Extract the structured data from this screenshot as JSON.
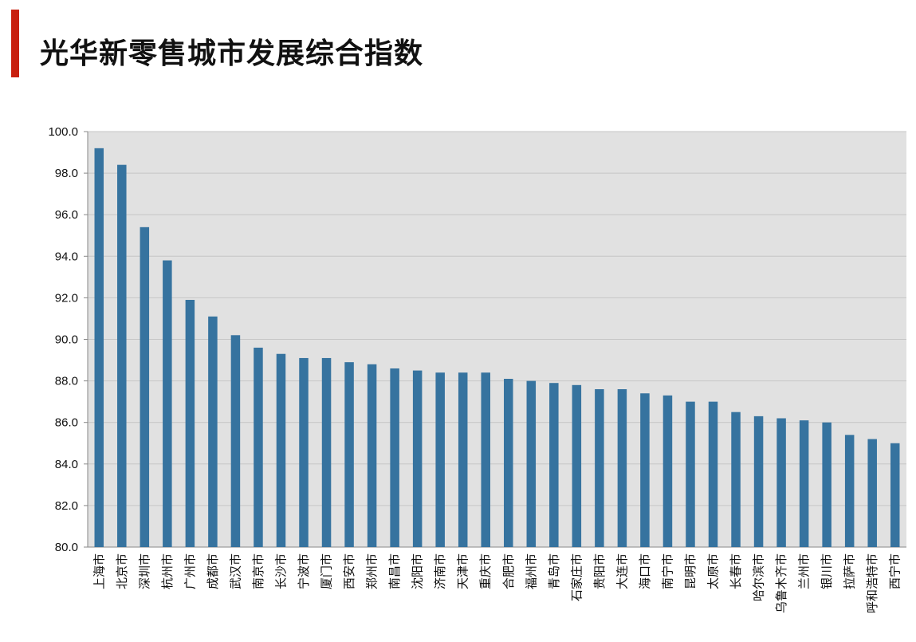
{
  "chart_data": {
    "type": "bar",
    "title": "光华新零售城市发展综合指数",
    "xlabel": "",
    "ylabel": "",
    "ylim": [
      80,
      100
    ],
    "yticks": [
      "80.0",
      "82.0",
      "84.0",
      "86.0",
      "88.0",
      "90.0",
      "92.0",
      "94.0",
      "96.0",
      "98.0",
      "100.0"
    ],
    "grid": true,
    "categories": [
      "上海市",
      "北京市",
      "深圳市",
      "杭州市",
      "广州市",
      "成都市",
      "武汉市",
      "南京市",
      "长沙市",
      "宁波市",
      "厦门市",
      "西安市",
      "郑州市",
      "南昌市",
      "沈阳市",
      "济南市",
      "天津市",
      "重庆市",
      "合肥市",
      "福州市",
      "青岛市",
      "石家庄市",
      "贵阳市",
      "大连市",
      "海口市",
      "南宁市",
      "昆明市",
      "太原市",
      "长春市",
      "哈尔滨市",
      "乌鲁木齐市",
      "兰州市",
      "银川市",
      "拉萨市",
      "呼和浩特市",
      "西宁市"
    ],
    "values": [
      99.2,
      98.4,
      95.4,
      93.8,
      91.9,
      91.1,
      90.2,
      89.6,
      89.3,
      89.1,
      89.1,
      88.9,
      88.8,
      88.6,
      88.5,
      88.4,
      88.4,
      88.4,
      88.1,
      88.0,
      87.9,
      87.8,
      87.6,
      87.6,
      87.4,
      87.3,
      87.0,
      87.0,
      86.5,
      86.3,
      86.2,
      86.1,
      86.0,
      85.4,
      85.2,
      85.0
    ],
    "colors": {
      "bar": "#36739f",
      "plot_bg": "#e1e1e1",
      "grid": "#c6c6c6",
      "accent": "#c8200f"
    }
  }
}
